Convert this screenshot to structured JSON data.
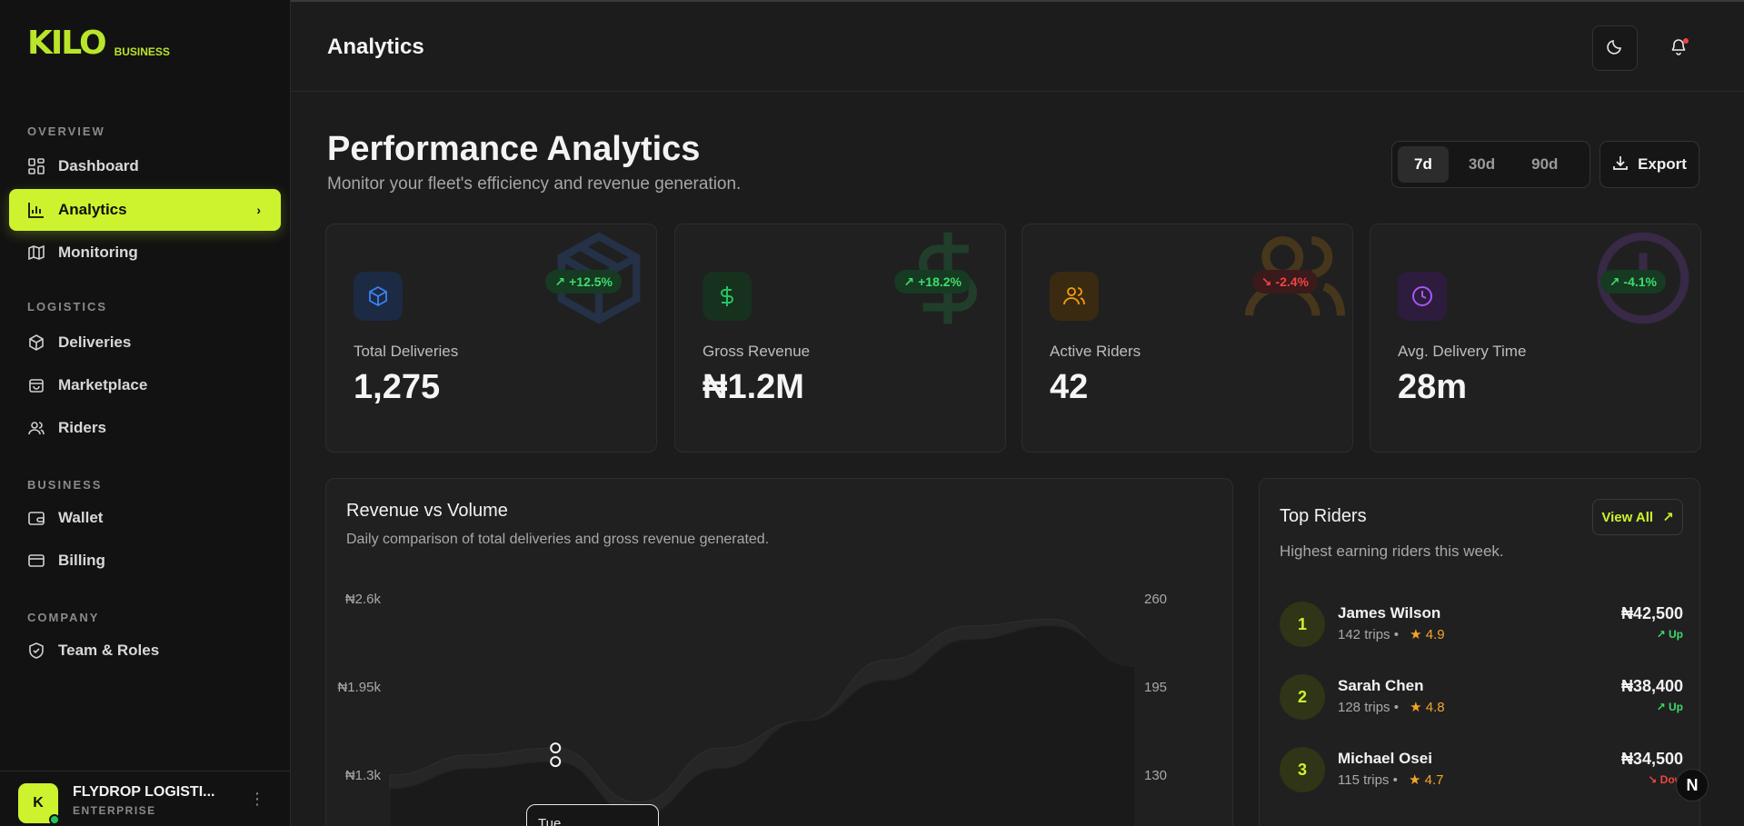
{
  "brand": {
    "logo": "KILO",
    "sub": "BUSINESS"
  },
  "sidebar": {
    "sections": [
      "OVERVIEW",
      "LOGISTICS",
      "BUSINESS",
      "COMPANY"
    ],
    "items": [
      {
        "label": "Dashboard",
        "icon": "grid-icon"
      },
      {
        "label": "Analytics",
        "icon": "bar-chart-icon",
        "active": true
      },
      {
        "label": "Monitoring",
        "icon": "map-icon"
      },
      {
        "label": "Deliveries",
        "icon": "package-icon"
      },
      {
        "label": "Marketplace",
        "icon": "bag-icon"
      },
      {
        "label": "Riders",
        "icon": "users-icon"
      },
      {
        "label": "Wallet",
        "icon": "wallet-icon"
      },
      {
        "label": "Billing",
        "icon": "card-icon"
      },
      {
        "label": "Team & Roles",
        "icon": "shield-icon"
      }
    ]
  },
  "org": {
    "initial": "K",
    "name": "FLYDROP LOGISTI...",
    "plan": "ENTERPRISE"
  },
  "header": {
    "title": "Analytics"
  },
  "page": {
    "title": "Performance Analytics",
    "subtitle": "Monitor your fleet's efficiency and revenue generation."
  },
  "range": {
    "options": [
      "7d",
      "30d",
      "90d"
    ],
    "selected": "7d"
  },
  "export_label": "Export",
  "stats": [
    {
      "label": "Total Deliveries",
      "value": "1,275",
      "trend": "+12.5%",
      "direction": "up",
      "color": "#3b82f6"
    },
    {
      "label": "Gross Revenue",
      "value": "₦1.2M",
      "trend": "+18.2%",
      "direction": "up",
      "color": "#22c55e"
    },
    {
      "label": "Active Riders",
      "value": "42",
      "trend": "-2.4%",
      "direction": "down",
      "color": "#f59e0b"
    },
    {
      "label": "Avg. Delivery Time",
      "value": "28m",
      "trend": "-4.1%",
      "direction": "up",
      "color": "#a855f7"
    }
  ],
  "chart": {
    "title": "Revenue vs Volume",
    "subtitle": "Daily comparison of total deliveries and gross revenue generated.",
    "tooltip_label": "Tue"
  },
  "chart_data": {
    "type": "area",
    "y_left_ticks": [
      "₦2.6k",
      "₦1.95k",
      "₦1.3k"
    ],
    "y_right_ticks": [
      "260",
      "195",
      "130"
    ],
    "y_left_range": [
      0,
      2600
    ],
    "y_right_range": [
      0,
      260
    ],
    "x": [
      0,
      1,
      2,
      3,
      4,
      5,
      6,
      7,
      8,
      9
    ],
    "series": [
      {
        "axis": "left",
        "values": [
          1300,
          1450,
          1500,
          1100,
          1500,
          1700,
          2150,
          2400,
          2450,
          2000
        ]
      },
      {
        "axis": "right",
        "values": [
          120,
          135,
          140,
          100,
          135,
          170,
          200,
          230,
          240,
          210
        ]
      }
    ],
    "highlight_index": 2
  },
  "riders": {
    "title": "Top Riders",
    "subtitle": "Highest earning riders this week.",
    "view_all": "View All",
    "list": [
      {
        "rank": "1",
        "name": "James Wilson",
        "trips": "142 trips",
        "rating": "★ 4.9",
        "amount": "₦42,500",
        "status": "Up",
        "dir": "up"
      },
      {
        "rank": "2",
        "name": "Sarah Chen",
        "trips": "128 trips",
        "rating": "★ 4.8",
        "amount": "₦38,400",
        "status": "Up",
        "dir": "up"
      },
      {
        "rank": "3",
        "name": "Michael Osei",
        "trips": "115 trips",
        "rating": "★ 4.7",
        "amount": "₦34,500",
        "status": "Dow",
        "dir": "down"
      }
    ]
  },
  "fab_label": "N"
}
